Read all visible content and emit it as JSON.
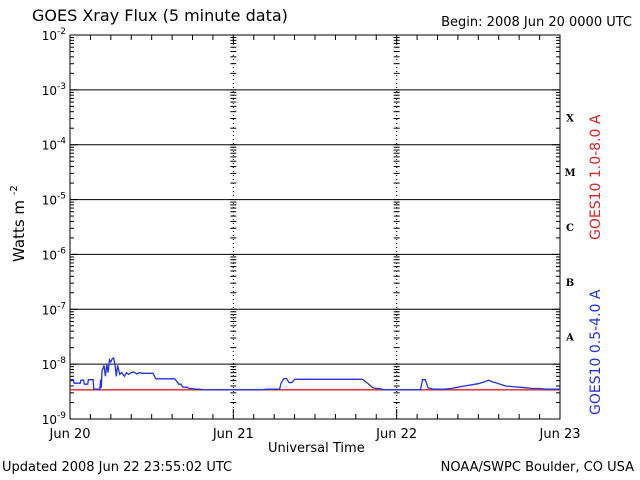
{
  "header": {
    "title": "GOES Xray Flux (5 minute data)",
    "begin": "Begin:  2008 Jun 20 0000 UTC"
  },
  "footer": {
    "updated": "Updated 2008 Jun 22 23:55:02 UTC",
    "credit": "NOAA/SWPC Boulder, CO USA"
  },
  "colors": {
    "long_channel": "#dd2222",
    "short_channel": "#2233dd",
    "axes": "#000000"
  },
  "chart_data": {
    "type": "line",
    "title": "GOES Xray Flux (5 minute data)",
    "xlabel": "Universal Time",
    "ylabel": "Watts m",
    "ylabel_sup": "-2",
    "y_scale": "log",
    "ylim": [
      1e-09,
      0.01
    ],
    "xlim": [
      "2008-06-20 00:00",
      "2008-06-23 00:00"
    ],
    "x_ticks": [
      {
        "x": "2008-06-20 00:00",
        "label": "Jun 20"
      },
      {
        "x": "2008-06-21 00:00",
        "label": "Jun 21"
      },
      {
        "x": "2008-06-22 00:00",
        "label": "Jun 22"
      },
      {
        "x": "2008-06-23 00:00",
        "label": "Jun 23"
      }
    ],
    "y_ticks": [
      {
        "exp": -9,
        "base": "10",
        "sup": "-9"
      },
      {
        "exp": -8,
        "base": "10",
        "sup": "-8"
      },
      {
        "exp": -7,
        "base": "10",
        "sup": "-7"
      },
      {
        "exp": -6,
        "base": "10",
        "sup": "-6"
      },
      {
        "exp": -5,
        "base": "10",
        "sup": "-5"
      },
      {
        "exp": -4,
        "base": "10",
        "sup": "-4"
      },
      {
        "exp": -3,
        "base": "10",
        "sup": "-3"
      },
      {
        "exp": -2,
        "base": "10",
        "sup": "-2"
      }
    ],
    "flare_classes": [
      {
        "label": "A",
        "exp": -7.5
      },
      {
        "label": "B",
        "exp": -6.5
      },
      {
        "label": "C",
        "exp": -5.5
      },
      {
        "label": "M",
        "exp": -4.5
      },
      {
        "label": "X",
        "exp": -3.5
      }
    ],
    "grid": "horizontal lines at 1e-8 to 1e-3, dashed vertical lines at day boundaries",
    "legend": "right side, vertical",
    "series": [
      {
        "name": "GOES10 1.0-8.0 A",
        "color": "#dd2222",
        "x_hours": [
          0,
          72
        ],
        "y": [
          3.4e-09,
          3.4e-09
        ]
      },
      {
        "name": "GOES10 0.5-4.0 A",
        "color": "#2233dd",
        "x_hours": [
          0,
          0.5,
          0.6,
          1.5,
          1.6,
          2.0,
          2.1,
          2.6,
          2.7,
          3.4,
          3.5,
          4.4,
          4.5,
          4.6,
          4.7,
          5.0,
          5.2,
          5.4,
          5.6,
          5.8,
          6.0,
          6.2,
          6.4,
          6.6,
          6.8,
          7.0,
          7.3,
          7.6,
          8.0,
          8.3,
          8.6,
          9.0,
          9.4,
          9.8,
          10.2,
          10.6,
          11.0,
          11.4,
          11.8,
          12.2,
          12.6,
          13.0,
          13.4,
          13.8,
          14.2,
          14.6,
          15.0,
          15.4,
          16.0,
          16.3,
          16.6,
          17.2,
          17.5,
          18.0,
          18.5,
          19.0,
          19.5,
          20.0,
          21.0,
          22.0,
          23.0,
          24.0,
          25.0,
          26.0,
          27.0,
          28.0,
          29.0,
          30.0,
          30.8,
          31.0,
          31.4,
          31.8,
          32.2,
          32.6,
          33.0,
          33.5,
          34.0,
          35.0,
          36.0,
          38.0,
          40.0,
          42.0,
          43.0,
          44.0,
          44.5,
          45.0,
          45.5,
          46.0,
          47.0,
          48.0,
          49.0,
          50.0,
          51.0,
          51.5,
          51.8,
          52.2,
          52.6,
          53.0,
          53.5,
          54.0,
          55.0,
          56.0,
          57.0,
          58.0,
          59.0,
          60.0,
          61.0,
          61.5,
          62.0,
          62.5,
          63.0,
          64.0,
          65.0,
          66.0,
          67.0,
          68.0,
          69.0,
          70.0,
          71.0,
          72.0
        ],
        "y": [
          5.2e-09,
          5.2e-09,
          4.5e-09,
          4.5e-09,
          5.1e-09,
          5.1e-09,
          4.3e-09,
          4.3e-09,
          5.2e-09,
          5.2e-09,
          3.5e-09,
          3.5e-09,
          5.2e-09,
          3.7e-09,
          7.5e-09,
          9.5e-09,
          6e-09,
          1e-08,
          7e-09,
          1.2e-08,
          1.1e-08,
          1.25e-08,
          1.3e-08,
          1e-08,
          6e-09,
          9.5e-09,
          6.5e-09,
          7e-09,
          6e-09,
          7e-09,
          6.5e-09,
          7e-09,
          7.2e-09,
          6.6e-09,
          7e-09,
          6.8e-09,
          6.8e-09,
          6.8e-09,
          6.8e-09,
          6.8e-09,
          5.4e-09,
          5.4e-09,
          5.4e-09,
          5.4e-09,
          5.4e-09,
          5.4e-09,
          5.4e-09,
          5.4e-09,
          4.3e-09,
          4.3e-09,
          3.8e-09,
          3.8e-09,
          3.6e-09,
          3.6e-09,
          3.5e-09,
          3.5e-09,
          3.4e-09,
          3.4e-09,
          3.4e-09,
          3.4e-09,
          3.4e-09,
          3.4e-09,
          3.4e-09,
          3.4e-09,
          3.4e-09,
          3.4e-09,
          3.5e-09,
          3.5e-09,
          3.5e-09,
          4.5e-09,
          5.4e-09,
          5.5e-09,
          4.6e-09,
          4.6e-09,
          5.3e-09,
          5.3e-09,
          5.3e-09,
          5.3e-09,
          5.3e-09,
          5.3e-09,
          5.3e-09,
          5.3e-09,
          5.3e-09,
          4.2e-09,
          3.7e-09,
          3.6e-09,
          3.6e-09,
          3.4e-09,
          3.4e-09,
          3.4e-09,
          3.4e-09,
          3.4e-09,
          3.4e-09,
          3.4e-09,
          5.2e-09,
          5.2e-09,
          3.7e-09,
          3.6e-09,
          3.5e-09,
          3.5e-09,
          3.5e-09,
          3.6e-09,
          3.8e-09,
          4e-09,
          4.2e-09,
          4.4e-09,
          4.8e-09,
          5.1e-09,
          4.8e-09,
          4.6e-09,
          4.4e-09,
          4e-09,
          3.9e-09,
          3.8e-09,
          3.7e-09,
          3.6e-09,
          3.6e-09,
          3.5e-09,
          3.5e-09,
          3.5e-09
        ]
      }
    ]
  }
}
